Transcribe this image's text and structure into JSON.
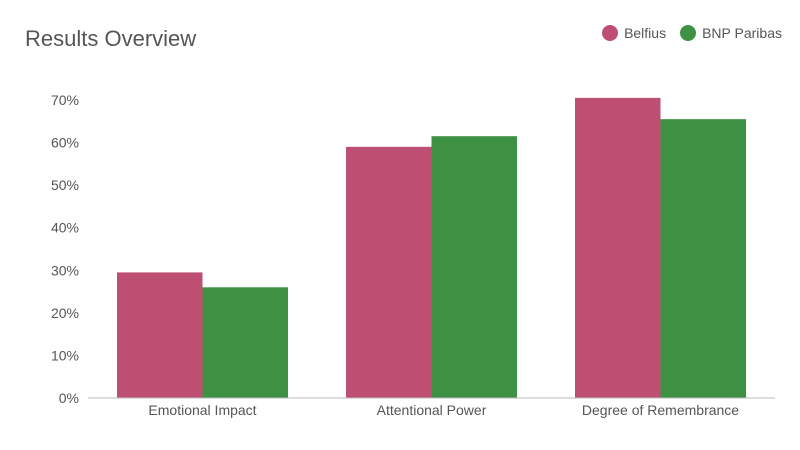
{
  "title": "Results Overview",
  "chart_data": {
    "type": "bar",
    "title": "Results Overview",
    "categories": [
      "Emotional Impact",
      "Attentional Power",
      "Degree of Remembrance"
    ],
    "series": [
      {
        "name": "Belfius",
        "color": "#bd5072",
        "values": [
          29.5,
          59,
          70.5
        ]
      },
      {
        "name": "BNP Paribas",
        "color": "#3e9143",
        "values": [
          26,
          61.5,
          65.5
        ]
      }
    ],
    "yticks": [
      "0%",
      "10%",
      "20%",
      "30%",
      "40%",
      "50%",
      "60%",
      "70%"
    ],
    "ylim": [
      0,
      70
    ],
    "xlabel": "",
    "ylabel": "",
    "legend_position": "top-right",
    "grid": false
  }
}
